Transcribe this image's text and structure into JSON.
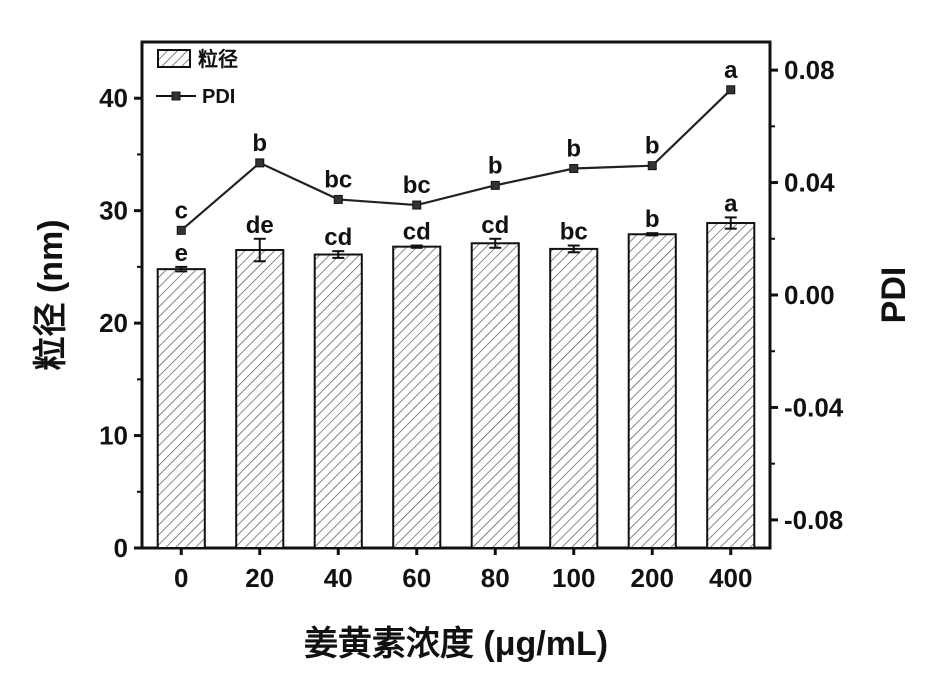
{
  "chart_data": {
    "type": "bar",
    "categories": [
      "0",
      "20",
      "40",
      "60",
      "80",
      "100",
      "200",
      "400"
    ],
    "xlabel": "姜黄素浓度 (μg/mL)",
    "ylabel": "粒径 (nm)",
    "y2label": "PDI",
    "ylim": [
      0,
      45
    ],
    "yticks": [
      0,
      10,
      20,
      30,
      40
    ],
    "y2lim": [
      -0.09,
      0.09
    ],
    "y2ticks": [
      "-0.08",
      "-0.04",
      "0.00",
      "0.04",
      "0.08"
    ],
    "y2tick_values": [
      -0.08,
      -0.04,
      0.0,
      0.04,
      0.08
    ],
    "legend_position": "top-left",
    "series": [
      {
        "name": "粒径",
        "type": "bar",
        "axis": "left",
        "pattern": "hatched",
        "values": [
          24.8,
          26.5,
          26.1,
          26.8,
          27.1,
          26.6,
          27.9,
          28.9
        ],
        "errors": [
          0.2,
          1.0,
          0.3,
          0.1,
          0.4,
          0.3,
          0.1,
          0.5
        ],
        "sig_labels": [
          "e",
          "de",
          "cd",
          "cd",
          "cd",
          "bc",
          "b",
          "a"
        ]
      },
      {
        "name": "PDI",
        "type": "line",
        "axis": "right",
        "values": [
          0.023,
          0.047,
          0.034,
          0.032,
          0.039,
          0.045,
          0.046,
          0.073
        ],
        "sig_labels": [
          "c",
          "b",
          "bc",
          "bc",
          "b",
          "b",
          "b",
          "a"
        ]
      }
    ]
  }
}
